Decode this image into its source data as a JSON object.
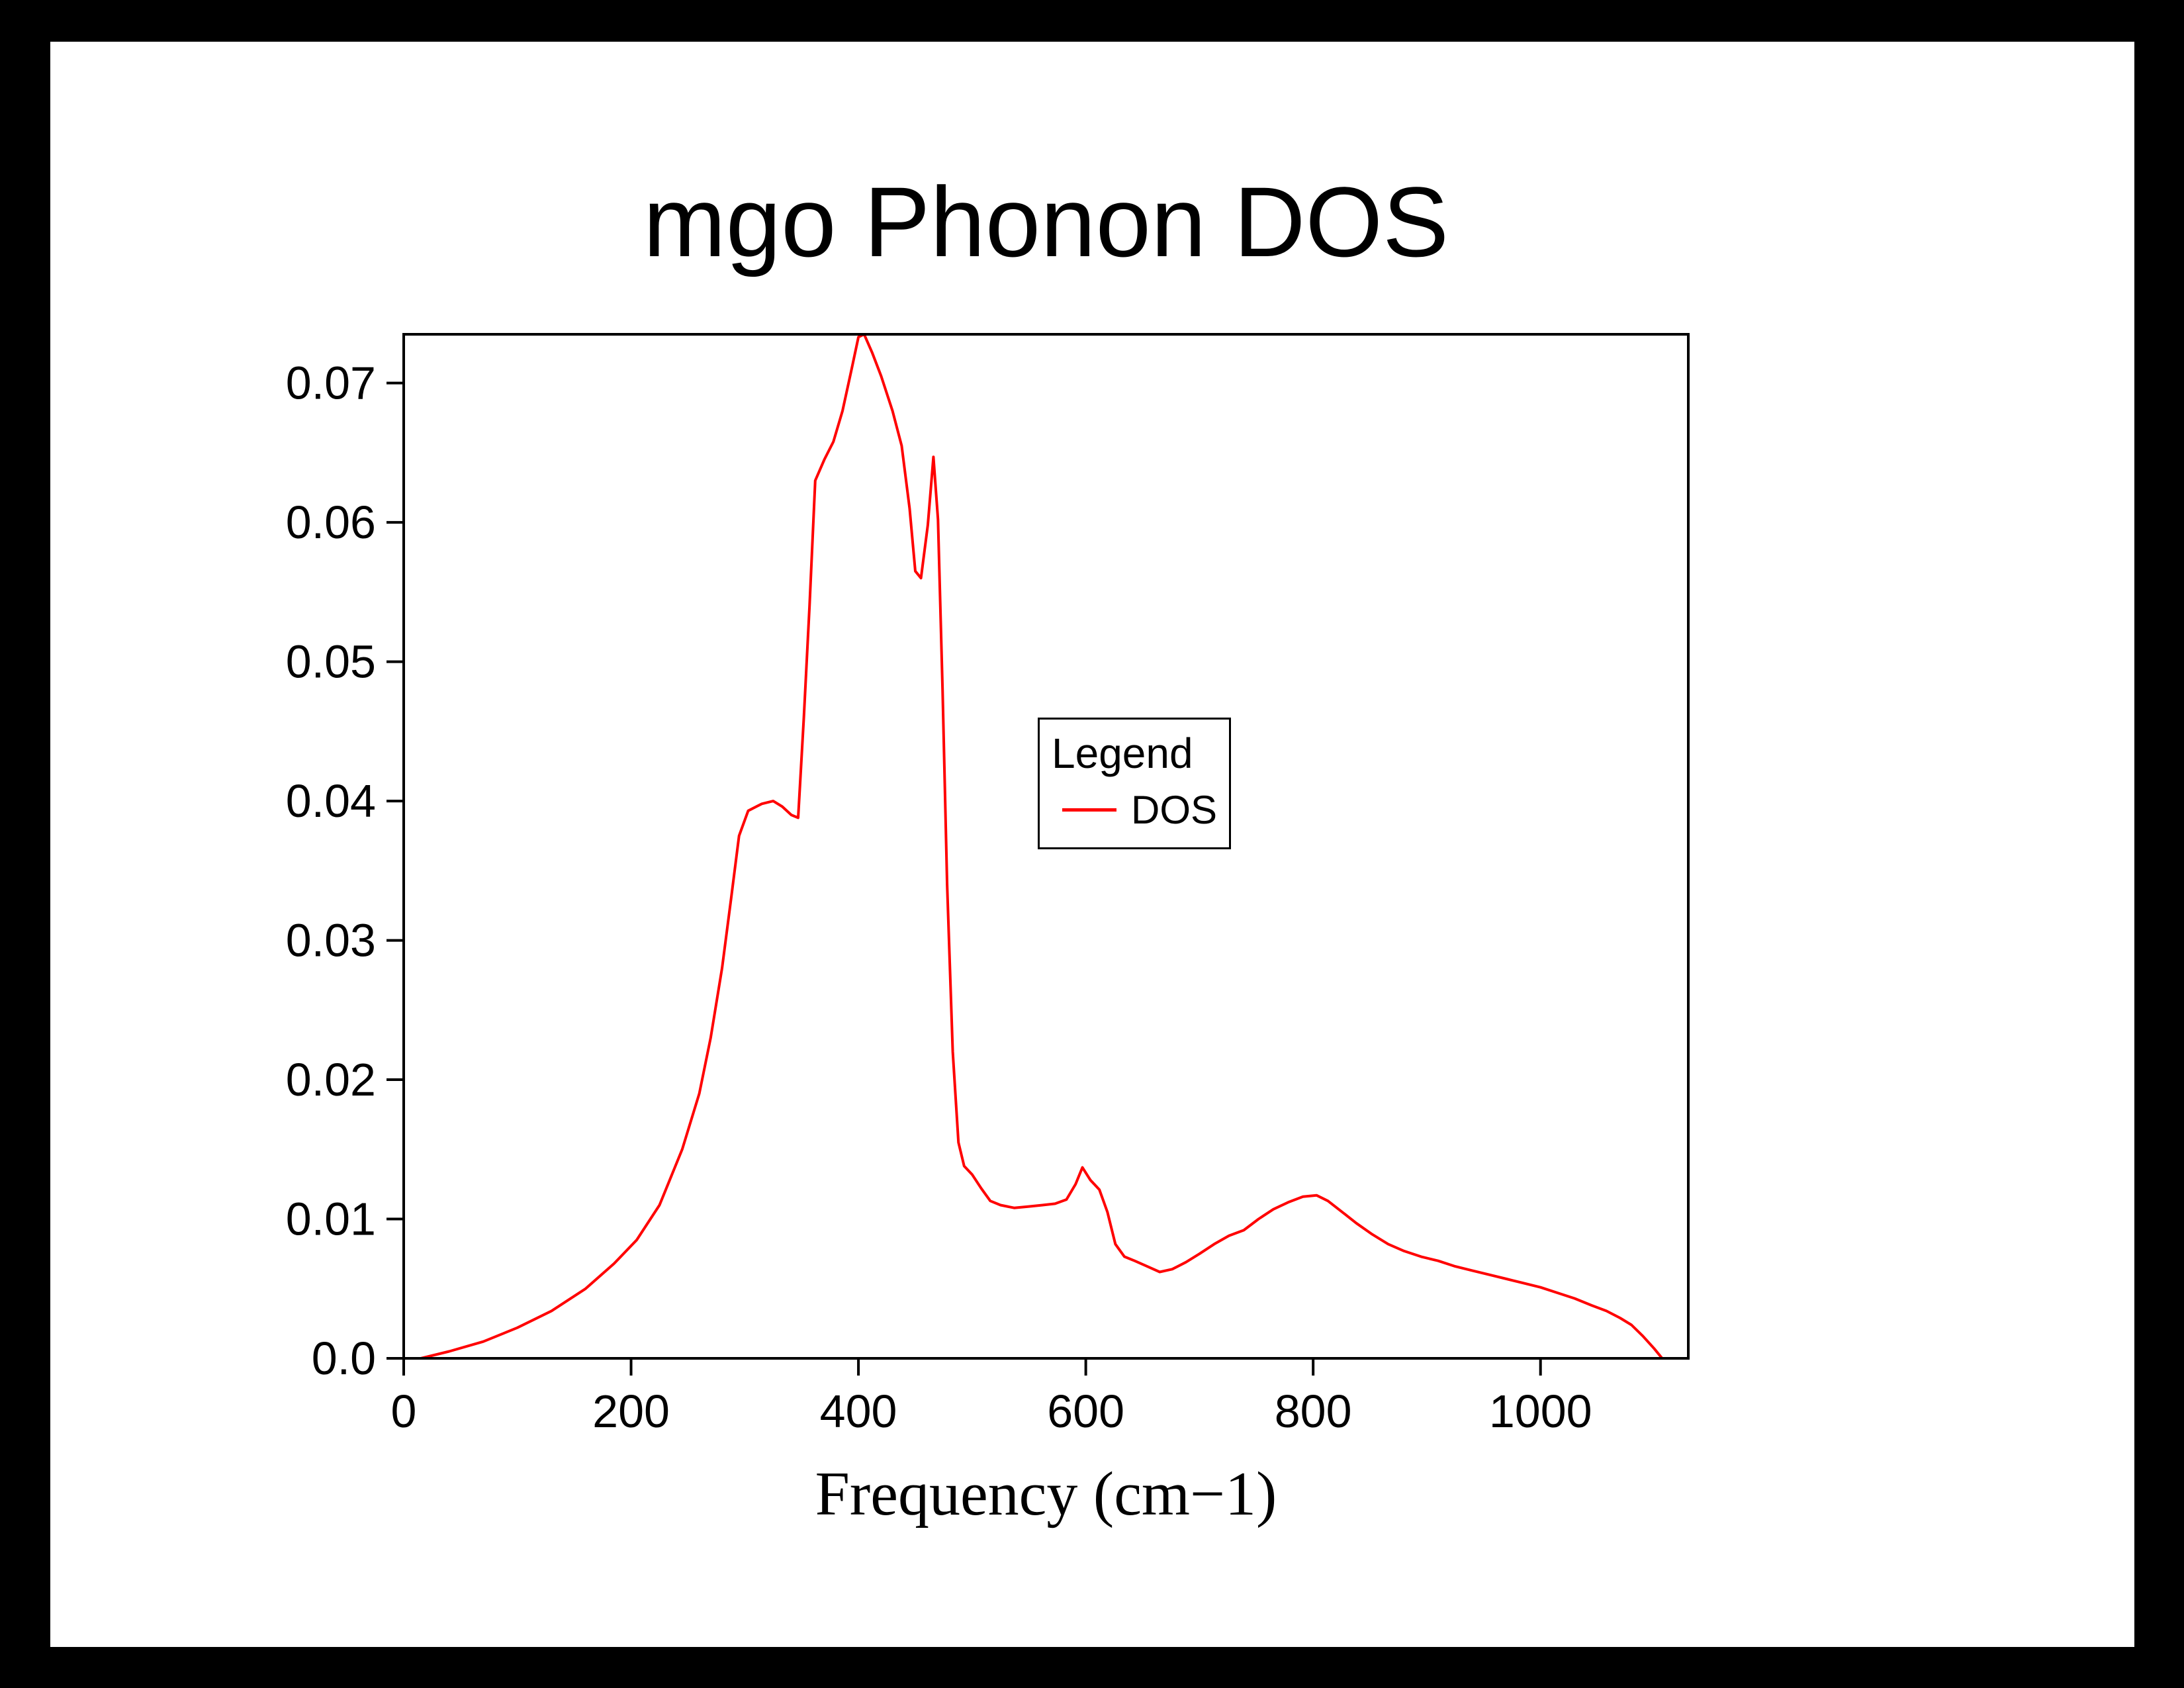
{
  "page": {
    "background_color": "#000000",
    "canvas_color": "#ffffff"
  },
  "chart_data": {
    "type": "line",
    "title": "mgo Phonon DOS",
    "xlabel": "Frequency (cm−1)",
    "ylabel": "",
    "xlim": [
      0,
      1130
    ],
    "ylim": [
      0,
      0.0735
    ],
    "grid": false,
    "xticks": [
      {
        "value": 0,
        "label": "0"
      },
      {
        "value": 200,
        "label": "200"
      },
      {
        "value": 400,
        "label": "400"
      },
      {
        "value": 600,
        "label": "600"
      },
      {
        "value": 800,
        "label": "800"
      },
      {
        "value": 1000,
        "label": "1000"
      }
    ],
    "yticks": [
      {
        "value": 0,
        "label": "0.0"
      },
      {
        "value": 0.01,
        "label": "0.01"
      },
      {
        "value": 0.02,
        "label": "0.02"
      },
      {
        "value": 0.03,
        "label": "0.03"
      },
      {
        "value": 0.04,
        "label": "0.04"
      },
      {
        "value": 0.05,
        "label": "0.05"
      },
      {
        "value": 0.06,
        "label": "0.06"
      },
      {
        "value": 0.07,
        "label": "0.07"
      }
    ],
    "legend": {
      "title": "Legend",
      "position": "center-right",
      "entries": [
        {
          "label": "DOS",
          "color": "#ff0000"
        }
      ]
    },
    "series": [
      {
        "name": "DOS",
        "color": "#ff0000",
        "points": [
          [
            15,
            0
          ],
          [
            40,
            0.0005
          ],
          [
            70,
            0.0012
          ],
          [
            100,
            0.0022
          ],
          [
            130,
            0.0034
          ],
          [
            160,
            0.005
          ],
          [
            185,
            0.0068
          ],
          [
            205,
            0.0085
          ],
          [
            225,
            0.011
          ],
          [
            245,
            0.015
          ],
          [
            260,
            0.019
          ],
          [
            270,
            0.023
          ],
          [
            280,
            0.028
          ],
          [
            288,
            0.033
          ],
          [
            295,
            0.0375
          ],
          [
            303,
            0.0393
          ],
          [
            315,
            0.0398
          ],
          [
            325,
            0.04
          ],
          [
            333,
            0.0396
          ],
          [
            341,
            0.039
          ],
          [
            347,
            0.0388
          ],
          [
            352,
            0.046
          ],
          [
            357,
            0.054
          ],
          [
            362,
            0.063
          ],
          [
            370,
            0.0645
          ],
          [
            378,
            0.0658
          ],
          [
            386,
            0.068
          ],
          [
            394,
            0.071
          ],
          [
            400,
            0.0733
          ],
          [
            405,
            0.0735
          ],
          [
            412,
            0.0722
          ],
          [
            420,
            0.0705
          ],
          [
            430,
            0.068
          ],
          [
            438,
            0.0655
          ],
          [
            445,
            0.061
          ],
          [
            450,
            0.0565
          ],
          [
            455,
            0.056
          ],
          [
            461,
            0.0598
          ],
          [
            466,
            0.0647
          ],
          [
            470,
            0.0602
          ],
          [
            474,
            0.048
          ],
          [
            478,
            0.034
          ],
          [
            483,
            0.022
          ],
          [
            488,
            0.0155
          ],
          [
            493,
            0.0138
          ],
          [
            500,
            0.0132
          ],
          [
            508,
            0.0122
          ],
          [
            516,
            0.0113
          ],
          [
            525,
            0.011
          ],
          [
            537,
            0.0108
          ],
          [
            550,
            0.0109
          ],
          [
            562,
            0.011
          ],
          [
            573,
            0.0111
          ],
          [
            583,
            0.0114
          ],
          [
            591,
            0.0125
          ],
          [
            597,
            0.0137
          ],
          [
            604,
            0.0128
          ],
          [
            612,
            0.0121
          ],
          [
            619,
            0.0105
          ],
          [
            626,
            0.0082
          ],
          [
            634,
            0.0073
          ],
          [
            643,
            0.007
          ],
          [
            654,
            0.0066
          ],
          [
            665,
            0.0062
          ],
          [
            676,
            0.0064
          ],
          [
            688,
            0.0069
          ],
          [
            700,
            0.0075
          ],
          [
            713,
            0.0082
          ],
          [
            726,
            0.0088
          ],
          [
            739,
            0.0092
          ],
          [
            752,
            0.01
          ],
          [
            765,
            0.0107
          ],
          [
            778,
            0.0112
          ],
          [
            791,
            0.0116
          ],
          [
            803,
            0.0117
          ],
          [
            813,
            0.0113
          ],
          [
            824,
            0.0106
          ],
          [
            838,
            0.0097
          ],
          [
            852,
            0.0089
          ],
          [
            866,
            0.0082
          ],
          [
            880,
            0.0077
          ],
          [
            895,
            0.0073
          ],
          [
            910,
            0.007
          ],
          [
            925,
            0.0066
          ],
          [
            940,
            0.0063
          ],
          [
            955,
            0.006
          ],
          [
            970,
            0.0057
          ],
          [
            985,
            0.0054
          ],
          [
            1000,
            0.0051
          ],
          [
            1015,
            0.0047
          ],
          [
            1030,
            0.0043
          ],
          [
            1045,
            0.0038
          ],
          [
            1058,
            0.0034
          ],
          [
            1070,
            0.0029
          ],
          [
            1080,
            0.0024
          ],
          [
            1090,
            0.0016
          ],
          [
            1100,
            0.0007
          ],
          [
            1107,
            0
          ]
        ]
      }
    ],
    "axis_color": "#000000",
    "line_width": 4
  }
}
